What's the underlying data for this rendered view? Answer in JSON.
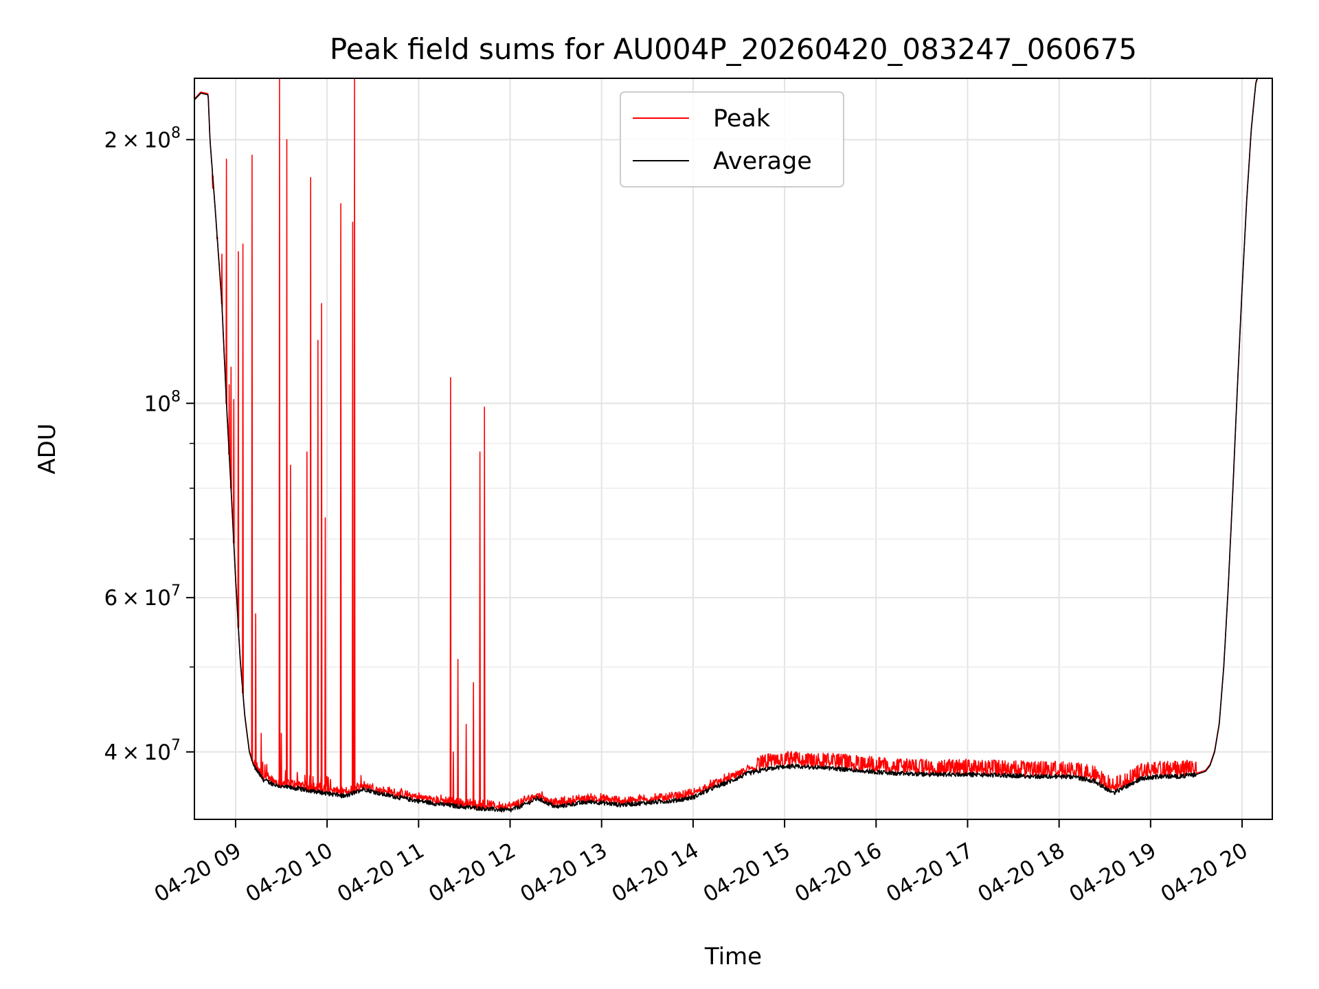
{
  "chart_data": {
    "type": "line",
    "title": "Peak field sums for AU004P_20260420_083247_060675",
    "xlabel": "Time",
    "ylabel": "ADU",
    "x_tick_labels": [
      "04-20 09",
      "04-20 10",
      "04-20 11",
      "04-20 12",
      "04-20 13",
      "04-20 14",
      "04-20 15",
      "04-20 16",
      "04-20 17",
      "04-20 18",
      "04-20 19",
      "04-20 20"
    ],
    "x_ticks_hours": [
      9,
      10,
      11,
      12,
      13,
      14,
      15,
      16,
      17,
      18,
      19,
      20
    ],
    "y_scale": "log",
    "y_major_ticks": [
      {
        "value": 40000000,
        "mantissa": "4",
        "exponent": "7"
      },
      {
        "value": 60000000,
        "mantissa": "6",
        "exponent": "7"
      },
      {
        "value": 100000000,
        "mantissa": "",
        "exponent": "8"
      },
      {
        "value": 200000000,
        "mantissa": "2",
        "exponent": "8"
      }
    ],
    "y_minor_ticks": [
      50000000,
      70000000,
      80000000,
      90000000
    ],
    "xlim_hours": [
      8.55,
      20.33
    ],
    "ylim": [
      33500000,
      235000000
    ],
    "grid": true,
    "legend": "upper-center",
    "series": [
      {
        "name": "Peak",
        "color": "#ff0000"
      },
      {
        "name": "Average",
        "color": "#000000"
      }
    ],
    "average_x_hours": [
      8.55,
      8.62,
      8.7,
      8.72,
      8.78,
      8.85,
      8.9,
      8.95,
      9.0,
      9.05,
      9.1,
      9.15,
      9.2,
      9.3,
      9.4,
      9.5,
      9.7,
      9.9,
      10.2,
      10.4,
      10.6,
      10.9,
      11.2,
      11.5,
      11.8,
      12.0,
      12.15,
      12.3,
      12.5,
      12.7,
      12.9,
      13.2,
      13.5,
      13.8,
      14.0,
      14.2,
      14.4,
      14.6,
      14.8,
      15.0,
      15.4,
      15.8,
      16.2,
      16.6,
      17.0,
      17.4,
      17.8,
      18.0,
      18.2,
      18.4,
      18.5,
      18.6,
      18.7,
      18.9,
      19.1,
      19.3,
      19.5,
      19.6,
      19.65,
      19.7,
      19.75,
      19.8,
      19.85,
      19.9,
      19.95,
      20.0,
      20.05,
      20.1,
      20.15,
      20.2
    ],
    "average_y": [
      222000000,
      226000000,
      225000000,
      200000000,
      165000000,
      130000000,
      100000000,
      80000000,
      63000000,
      51000000,
      44000000,
      40000000,
      38500000,
      37200000,
      36800000,
      36500000,
      36300000,
      36000000,
      35600000,
      36300000,
      35800000,
      35300000,
      34900000,
      34600000,
      34400000,
      34300000,
      34800000,
      35400000,
      34600000,
      34900000,
      35100000,
      34800000,
      35000000,
      35200000,
      35500000,
      36300000,
      37000000,
      37800000,
      38200000,
      38500000,
      38400000,
      38100000,
      37800000,
      37700000,
      37700000,
      37600000,
      37500000,
      37500000,
      37400000,
      37000000,
      36400000,
      35900000,
      36400000,
      37300000,
      37500000,
      37500000,
      37700000,
      38000000,
      38600000,
      40000000,
      43000000,
      50000000,
      62000000,
      80000000,
      105000000,
      135000000,
      170000000,
      205000000,
      232000000,
      240000000
    ],
    "peak_spikes": [
      {
        "t": 8.75,
        "v": 176000000
      },
      {
        "t": 8.8,
        "v": 155000000
      },
      {
        "t": 8.85,
        "v": 148000000
      },
      {
        "t": 8.9,
        "v": 190000000
      },
      {
        "t": 8.93,
        "v": 105000000
      },
      {
        "t": 8.95,
        "v": 110000000
      },
      {
        "t": 8.98,
        "v": 101000000
      },
      {
        "t": 9.03,
        "v": 149000000
      },
      {
        "t": 9.08,
        "v": 152000000
      },
      {
        "t": 9.18,
        "v": 192000000
      },
      {
        "t": 9.22,
        "v": 57500000
      },
      {
        "t": 9.28,
        "v": 42000000
      },
      {
        "t": 9.48,
        "v": 240000000
      },
      {
        "t": 9.5,
        "v": 42000000
      },
      {
        "t": 9.56,
        "v": 200000000
      },
      {
        "t": 9.6,
        "v": 85000000
      },
      {
        "t": 9.78,
        "v": 88000000
      },
      {
        "t": 9.82,
        "v": 181000000
      },
      {
        "t": 9.9,
        "v": 118000000
      },
      {
        "t": 9.94,
        "v": 130000000
      },
      {
        "t": 9.98,
        "v": 74000000
      },
      {
        "t": 10.15,
        "v": 169000000
      },
      {
        "t": 10.28,
        "v": 161000000
      },
      {
        "t": 10.3,
        "v": 240000000
      },
      {
        "t": 11.35,
        "v": 107000000
      },
      {
        "t": 11.38,
        "v": 40000000
      },
      {
        "t": 11.43,
        "v": 51000000
      },
      {
        "t": 11.52,
        "v": 43000000
      },
      {
        "t": 11.6,
        "v": 48000000
      },
      {
        "t": 11.67,
        "v": 88000000
      },
      {
        "t": 11.72,
        "v": 99000000
      }
    ]
  }
}
